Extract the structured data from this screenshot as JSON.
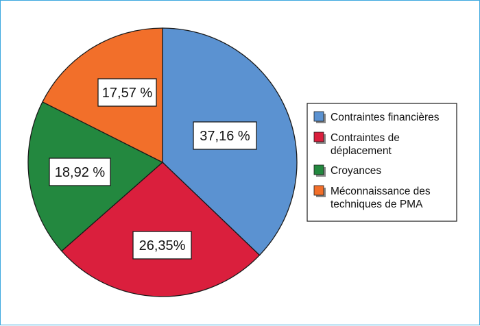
{
  "chart_data": {
    "type": "pie",
    "categories": [
      "Contraintes financières",
      "Contraintes de déplacement",
      "Croyances",
      "Méconnaissance des techniques de PMA"
    ],
    "values": [
      37.16,
      26.35,
      18.92,
      17.57
    ],
    "data_labels": [
      "37,16 %",
      "26,35%",
      "18,92 %",
      "17,57 %"
    ],
    "legend_lines": [
      [
        "Contraintes financières"
      ],
      [
        "Contraintes de",
        "déplacement"
      ],
      [
        "Croyances"
      ],
      [
        "Méconnaissance des",
        "techniques de PMA"
      ]
    ],
    "colors": [
      "#5b92d1",
      "#da1f3d",
      "#23883f",
      "#f26f2a"
    ],
    "start_angle_deg": 0,
    "direction": "clockwise",
    "legend_position": "right"
  }
}
